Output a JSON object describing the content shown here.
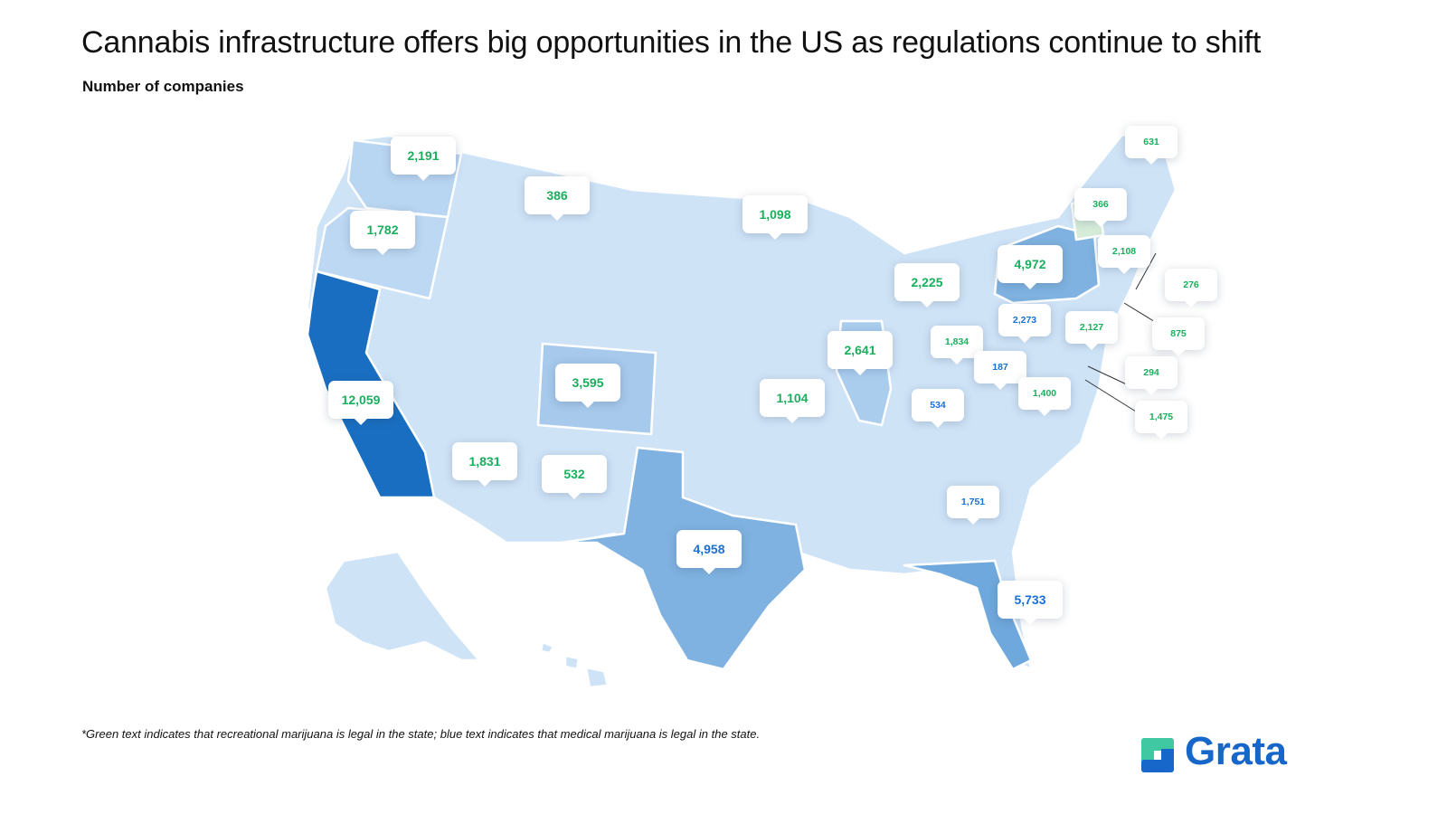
{
  "title": "Cannabis infrastructure offers big opportunities in the US as regulations continue to shift",
  "subtitle": "Number of companies",
  "footnote": "*Green text indicates that recreational marijuana is legal in the state; blue text indicates that medical marijuana is legal in the state.",
  "brand": {
    "name": "Grata",
    "color": "#1766c9",
    "accent": "#3fc8a2"
  },
  "colors": {
    "recreational_text": "#1aaf5d",
    "medical_text": "#1a70d6",
    "scale_low": "#cfe3f7",
    "scale_high": "#1a6ec1"
  },
  "states": [
    {
      "name": "Washington",
      "value": "2,191",
      "legal": "recreational"
    },
    {
      "name": "Oregon",
      "value": "1,782",
      "legal": "recreational"
    },
    {
      "name": "California",
      "value": "12,059",
      "legal": "recreational"
    },
    {
      "name": "Montana",
      "value": "386",
      "legal": "recreational"
    },
    {
      "name": "Minnesota",
      "value": "1,098",
      "legal": "recreational"
    },
    {
      "name": "Colorado",
      "value": "3,595",
      "legal": "recreational"
    },
    {
      "name": "Arizona",
      "value": "1,831",
      "legal": "recreational"
    },
    {
      "name": "New Mexico",
      "value": "532",
      "legal": "recreational"
    },
    {
      "name": "Texas",
      "value": "4,958",
      "legal": "medical"
    },
    {
      "name": "Missouri",
      "value": "1,104",
      "legal": "recreational"
    },
    {
      "name": "Illinois",
      "value": "2,641",
      "legal": "recreational"
    },
    {
      "name": "Michigan",
      "value": "2,225",
      "legal": "recreational"
    },
    {
      "name": "Indiana",
      "value": "1,834",
      "legal": "recreational"
    },
    {
      "name": "Kentucky",
      "value": "534",
      "legal": "medical"
    },
    {
      "name": "Ohio",
      "value": "2,273",
      "legal": "medical"
    },
    {
      "name": "West Virginia",
      "value": "187",
      "legal": "medical"
    },
    {
      "name": "Virginia",
      "value": "1,400",
      "legal": "recreational"
    },
    {
      "name": "Georgia",
      "value": "1,751",
      "legal": "medical"
    },
    {
      "name": "Florida",
      "value": "5,733",
      "legal": "medical"
    },
    {
      "name": "New York",
      "value": "4,972",
      "legal": "recreational"
    },
    {
      "name": "Pennsylvania",
      "value": "2,127",
      "legal": "recreational"
    },
    {
      "name": "Maine",
      "value": "631",
      "legal": "recreational"
    },
    {
      "name": "Vermont",
      "value": "366",
      "legal": "recreational"
    },
    {
      "name": "Massachusetts",
      "value": "2,108",
      "legal": "recreational"
    },
    {
      "name": "Rhode Island",
      "value": "276",
      "legal": "recreational"
    },
    {
      "name": "Connecticut",
      "value": "875",
      "legal": "recreational"
    },
    {
      "name": "Delaware",
      "value": "294",
      "legal": "recreational"
    },
    {
      "name": "Maryland",
      "value": "1,475",
      "legal": "recreational"
    }
  ]
}
